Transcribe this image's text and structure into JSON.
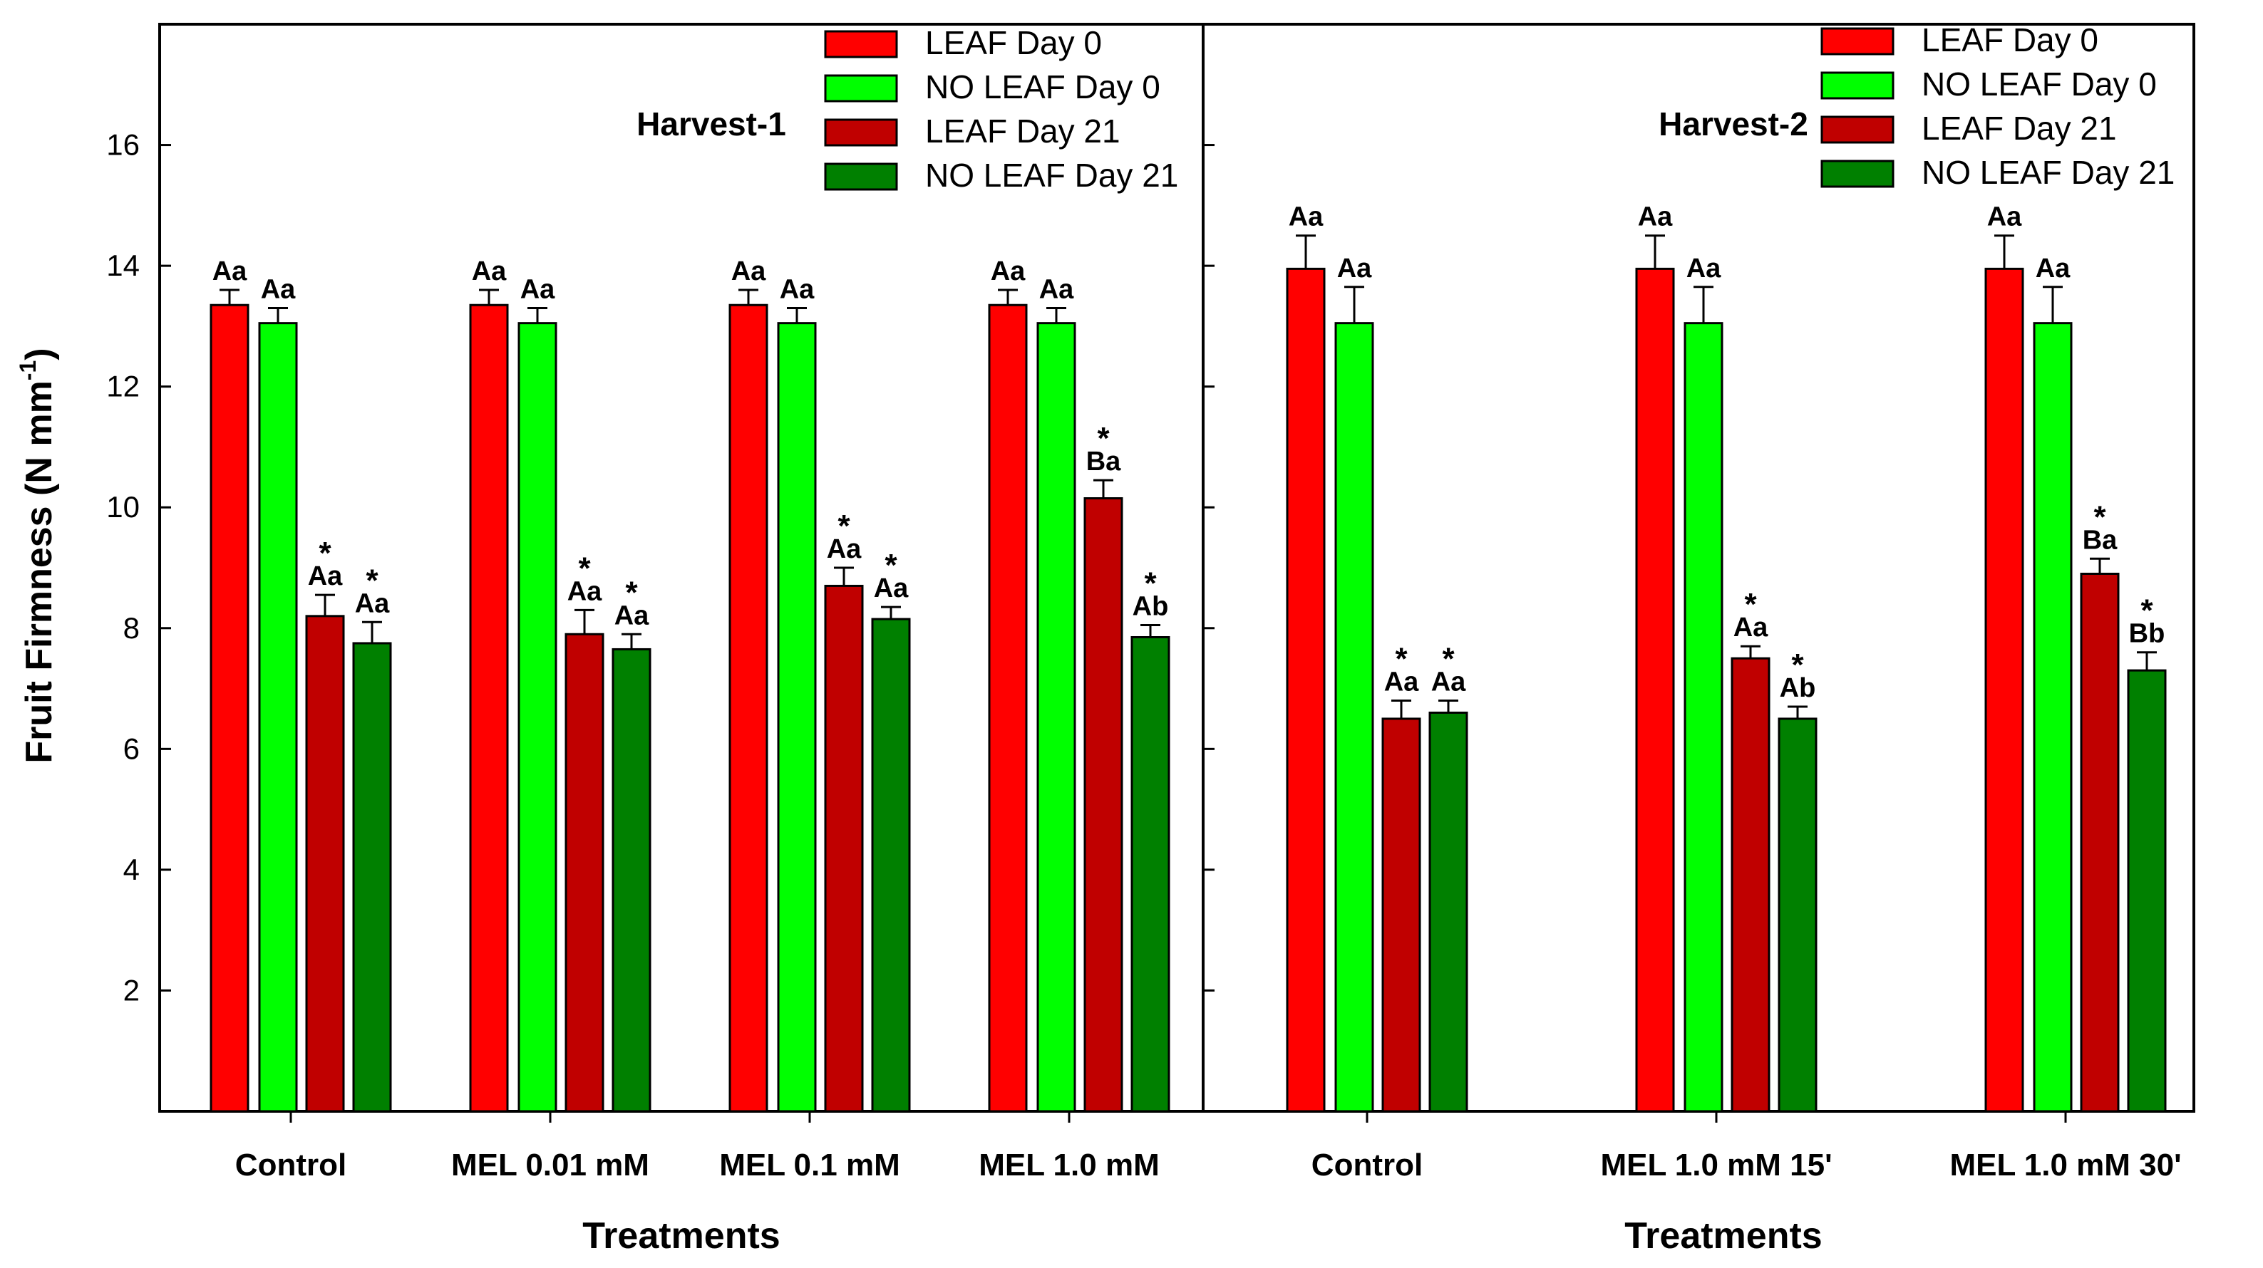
{
  "chart_data": {
    "type": "bar",
    "ylabel": "Fruit Firmness (N mm",
    "ylabel_sup": "-1",
    "ylabel_close": ")",
    "ylim": [
      0,
      18
    ],
    "yticks": [
      2,
      4,
      6,
      8,
      10,
      12,
      14,
      16
    ],
    "series_colors": {
      "LEAF Day 0": "#ff0000",
      "NO LEAF Day 0": "#00ff00",
      "LEAF Day 21": "#c00000",
      "NO LEAF Day 21": "#008000"
    },
    "legend": [
      "LEAF Day 0",
      "NO LEAF Day 0",
      "LEAF Day 21",
      "NO LEAF Day 21"
    ],
    "panels": [
      {
        "title": "Harvest-1",
        "xlabel": "Treatments",
        "categories": [
          "Control",
          "MEL 0.01 mM",
          "MEL 0.1 mM",
          "MEL 1.0 mM"
        ],
        "series": [
          {
            "name": "LEAF Day 0",
            "values": [
              13.35,
              13.35,
              13.35,
              13.35
            ],
            "errors": [
              0.25,
              0.25,
              0.25,
              0.25
            ],
            "labels": [
              "Aa",
              "Aa",
              "Aa",
              "Aa"
            ],
            "stars": [
              false,
              false,
              false,
              false
            ]
          },
          {
            "name": "NO LEAF Day 0",
            "values": [
              13.05,
              13.05,
              13.05,
              13.05
            ],
            "errors": [
              0.25,
              0.25,
              0.25,
              0.25
            ],
            "labels": [
              "Aa",
              "Aa",
              "Aa",
              "Aa"
            ],
            "stars": [
              false,
              false,
              false,
              false
            ]
          },
          {
            "name": "LEAF Day 21",
            "values": [
              8.2,
              7.9,
              8.7,
              10.15
            ],
            "errors": [
              0.35,
              0.4,
              0.3,
              0.3
            ],
            "labels": [
              "Aa",
              "Aa",
              "Aa",
              "Ba"
            ],
            "stars": [
              true,
              true,
              true,
              true
            ]
          },
          {
            "name": "NO LEAF Day 21",
            "values": [
              7.75,
              7.65,
              8.15,
              7.85
            ],
            "errors": [
              0.35,
              0.25,
              0.2,
              0.2
            ],
            "labels": [
              "Aa",
              "Aa",
              "Aa",
              "Ab"
            ],
            "stars": [
              true,
              true,
              true,
              true
            ]
          }
        ]
      },
      {
        "title": "Harvest-2",
        "xlabel": "Treatments",
        "categories": [
          "Control",
          "MEL 1.0  mM 15'",
          "MEL 1.0 mM 30'"
        ],
        "series": [
          {
            "name": "LEAF Day 0",
            "values": [
              13.95,
              13.95,
              13.95
            ],
            "errors": [
              0.55,
              0.55,
              0.55
            ],
            "labels": [
              "Aa",
              "Aa",
              "Aa"
            ],
            "stars": [
              false,
              false,
              false
            ]
          },
          {
            "name": "NO LEAF Day 0",
            "values": [
              13.05,
              13.05,
              13.05
            ],
            "errors": [
              0.6,
              0.6,
              0.6
            ],
            "labels": [
              "Aa",
              "Aa",
              "Aa"
            ],
            "stars": [
              false,
              false,
              false
            ]
          },
          {
            "name": "LEAF Day 21",
            "values": [
              6.5,
              7.5,
              8.9
            ],
            "errors": [
              0.3,
              0.2,
              0.25
            ],
            "labels": [
              "Aa",
              "Aa",
              "Ba"
            ],
            "stars": [
              true,
              true,
              true
            ]
          },
          {
            "name": "NO LEAF Day 21",
            "values": [
              6.6,
              6.5,
              7.3
            ],
            "errors": [
              0.2,
              0.2,
              0.3
            ],
            "labels": [
              "Aa",
              "Ab",
              "Bb"
            ],
            "stars": [
              true,
              true,
              true
            ]
          }
        ]
      }
    ]
  }
}
